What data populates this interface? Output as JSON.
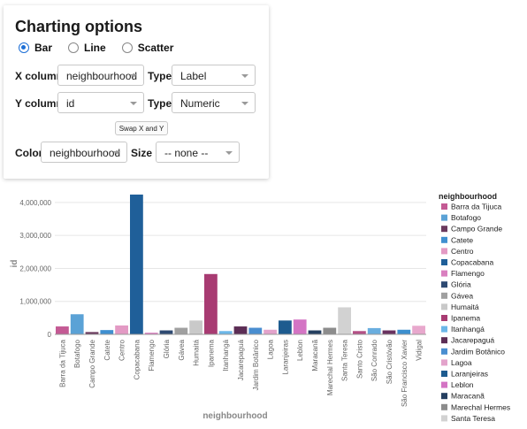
{
  "panel": {
    "title": "Charting options",
    "chart_types": [
      {
        "label": "Bar",
        "checked": true
      },
      {
        "label": "Line",
        "checked": false
      },
      {
        "label": "Scatter",
        "checked": false
      }
    ],
    "x_column_label": "X column",
    "x_column_value": "neighbourhood",
    "x_type_label": "Type",
    "x_type_value": "Label",
    "y_column_label": "Y column",
    "y_column_value": "id",
    "y_type_label": "Type",
    "y_type_value": "Numeric",
    "swap_label": "Swap X and Y",
    "color_label": "Color",
    "color_value": "neighbourhood",
    "size_label": "Size",
    "size_value": "-- none --"
  },
  "chart_data": {
    "type": "bar",
    "xlabel": "neighbourhood",
    "ylabel": "id",
    "ylim": [
      0,
      4400000
    ],
    "yticks": [
      0,
      1000000,
      2000000,
      3000000,
      4000000
    ],
    "ytick_labels": [
      "0",
      "1,000,000",
      "2,000,000",
      "3,000,000",
      "4,000,000"
    ],
    "grid": true,
    "legend_position": "right",
    "legend_title": "neighbourhood",
    "categories": [
      "Barra da Tijuca",
      "Botafogo",
      "Campo Grande",
      "Catete",
      "Centro",
      "Copacabana",
      "Flamengo",
      "Glória",
      "Gávea",
      "Humaitá",
      "Ipanema",
      "Itanhangá",
      "Jacarepaguá",
      "Jardim Botânico",
      "Lagoa",
      "Laranjeiras",
      "Leblon",
      "Maracanã",
      "Marechal Hermes",
      "Santa Teresa",
      "Santo Cristo",
      "São Conrado",
      "São Cristóvão",
      "São Francisco Xavier",
      "Vidigal"
    ],
    "values": [
      240000,
      610000,
      70000,
      130000,
      270000,
      4240000,
      50000,
      120000,
      200000,
      420000,
      1830000,
      100000,
      240000,
      200000,
      140000,
      420000,
      450000,
      120000,
      200000,
      820000,
      100000,
      190000,
      120000,
      140000,
      260000
    ],
    "colors": [
      "#c45a94",
      "#5ba2d6",
      "#6b3a5e",
      "#3f8fd0",
      "#e39ac4",
      "#1f5f99",
      "#d97fbf",
      "#2e4a72",
      "#a0a0a0",
      "#c9c9c9",
      "#a83b72",
      "#6cb7e8",
      "#5c2d55",
      "#4a8ed0",
      "#e3a3cb",
      "#1d5b8f",
      "#d474c4",
      "#253f60",
      "#8c8c8c",
      "#d2d2d2",
      "#b45086",
      "#6aaedf",
      "#6a3260",
      "#3c8fce",
      "#e8a8cd"
    ],
    "legend_items": [
      "Barra da Tijuca",
      "Botafogo",
      "Campo Grande",
      "Catete",
      "Centro",
      "Copacabana",
      "Flamengo",
      "Glória",
      "Gávea",
      "Humaitá",
      "Ipanema",
      "Itanhangá",
      "Jacarepaguá",
      "Jardim Botânico",
      "Lagoa",
      "Laranjeiras",
      "Leblon",
      "Maracanã",
      "Marechal Hermes",
      "Santa Teresa"
    ]
  }
}
